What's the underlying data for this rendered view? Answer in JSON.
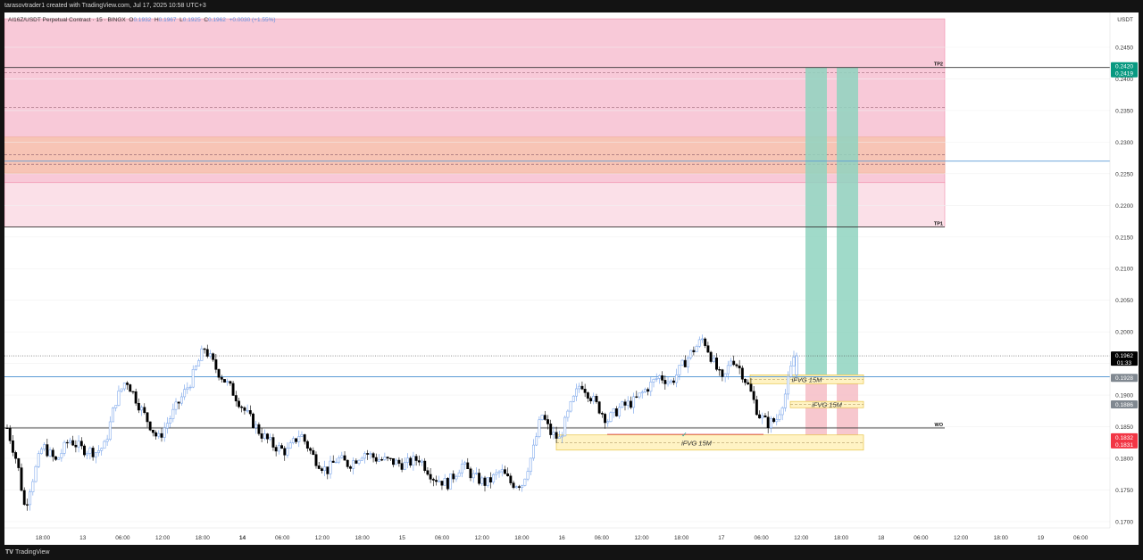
{
  "header": {
    "credit": "tarasovtrader1 created with TradingView.com, Jul 17, 2025 10:58 UTC+3"
  },
  "footer": {
    "brand_mark": "TV",
    "brand": "TradingView"
  },
  "legend": {
    "symbol": "AI16Z/USDT Perpetual Contract · 15 · BINGX",
    "o_label": "O",
    "o": "0.1932",
    "h_label": "H",
    "h": "0.1967",
    "l_label": "L",
    "l": "0.1925",
    "c_label": "C",
    "c": "0.1962",
    "change": "+0.0030 (+1.55%)"
  },
  "currency": "USDT",
  "colors": {
    "candle_up": "#ffffff",
    "candle_up_border": "#6b9be8",
    "candle_down": "#000000",
    "zone_pink": "#f8c9d8",
    "zone_orange": "#f7c4b5",
    "zone_light": "#fbe0e8",
    "fvg": "#fff3c4",
    "fvg_border": "#e8c547",
    "target": "#8fd3c0",
    "stop": "#f6bdc6",
    "blue_line": "#5b9bd5",
    "price_tag": "#000000",
    "price_tag_2": "#808890",
    "tp_tag": "#089981",
    "sl_tag": "#f23645"
  },
  "chart_data": {
    "type": "candlestick",
    "ylim": [
      0.169,
      0.2505
    ],
    "y_ticks": [
      "0.2450",
      "0.2400",
      "0.2350",
      "0.2300",
      "0.2250",
      "0.2200",
      "0.2150",
      "0.2100",
      "0.2050",
      "0.2000",
      "0.1950",
      "0.1900",
      "0.1850",
      "0.1800",
      "0.1750",
      "0.1700"
    ],
    "x_ticks": [
      "18:00",
      "13",
      "06:00",
      "12:00",
      "18:00",
      "14",
      "06:00",
      "12:00",
      "18:00",
      "15",
      "06:00",
      "12:00",
      "18:00",
      "16",
      "06:00",
      "12:00",
      "18:00",
      "17",
      "06:00",
      "12:00",
      "18:00",
      "18",
      "06:00",
      "12:00",
      "18:00",
      "19",
      "06:00"
    ],
    "x_ticks_bold": [
      "14"
    ],
    "bars_visible": 276,
    "zones": [
      {
        "kind": "pink",
        "top": 0.2495,
        "bottom": 0.2236
      },
      {
        "kind": "orange",
        "top": 0.2308,
        "bottom": 0.2251
      },
      {
        "kind": "light",
        "top": 0.2236,
        "bottom": 0.2166
      }
    ],
    "levels": [
      {
        "name": "TP2",
        "price": 0.2418,
        "style": "solid"
      },
      {
        "name": "TP1",
        "price": 0.2166,
        "style": "solid"
      },
      {
        "name": "WO",
        "price": 0.1848,
        "style": "solid"
      },
      {
        "name": "",
        "price": 0.241,
        "style": "dashed"
      },
      {
        "name": "",
        "price": 0.2355,
        "style": "dashed"
      },
      {
        "name": "",
        "price": 0.228,
        "style": "dashed"
      },
      {
        "name": "",
        "price": 0.2265,
        "style": "dashed"
      }
    ],
    "blue_lines": [
      0.227,
      0.1929
    ],
    "fvg_boxes": [
      {
        "label": "iFVG 15M",
        "top": 0.1932,
        "bottom": 0.1918
      },
      {
        "label": "iFVG 15M",
        "top": 0.189,
        "bottom": 0.188
      },
      {
        "label": "iFVG 15M",
        "top": 0.1837,
        "bottom": 0.1813
      }
    ],
    "positions": [
      {
        "entry": 0.1929,
        "target": 0.2418,
        "stop": 0.1832
      },
      {
        "entry": 0.1929,
        "target": 0.2418,
        "stop": 0.1832
      }
    ],
    "price_labels": {
      "tp_top": "0.2420",
      "tp_bottom": "0.2419",
      "last": "0.1962",
      "countdown": "01:33",
      "level_1": "0.1928",
      "level_2": "0.1886",
      "sl_top": "0.1832",
      "sl_bottom": "0.1831"
    },
    "current_price": 0.1962,
    "anchors": [
      [
        0,
        0.1848
      ],
      [
        12,
        0.179
      ],
      [
        20,
        0.172
      ],
      [
        26,
        0.1755
      ],
      [
        40,
        0.182
      ],
      [
        55,
        0.1795
      ],
      [
        70,
        0.183
      ],
      [
        84,
        0.1815
      ],
      [
        100,
        0.181
      ],
      [
        110,
        0.182
      ],
      [
        122,
        0.189
      ],
      [
        134,
        0.1925
      ],
      [
        150,
        0.188
      ],
      [
        170,
        0.183
      ],
      [
        186,
        0.187
      ],
      [
        206,
        0.192
      ],
      [
        222,
        0.1975
      ],
      [
        236,
        0.194
      ],
      [
        252,
        0.191
      ],
      [
        270,
        0.187
      ],
      [
        285,
        0.184
      ],
      [
        300,
        0.182
      ],
      [
        315,
        0.181
      ],
      [
        330,
        0.184
      ],
      [
        346,
        0.18
      ],
      [
        360,
        0.178
      ],
      [
        372,
        0.18
      ],
      [
        385,
        0.179
      ],
      [
        402,
        0.181
      ],
      [
        415,
        0.18
      ],
      [
        432,
        0.1795
      ],
      [
        448,
        0.179
      ],
      [
        464,
        0.18
      ],
      [
        480,
        0.177
      ],
      [
        496,
        0.176
      ],
      [
        512,
        0.179
      ],
      [
        526,
        0.177
      ],
      [
        540,
        0.176
      ],
      [
        556,
        0.178
      ],
      [
        568,
        0.176
      ],
      [
        580,
        0.176
      ],
      [
        592,
        0.181
      ],
      [
        602,
        0.187
      ],
      [
        612,
        0.184
      ],
      [
        622,
        0.183
      ],
      [
        634,
        0.188
      ],
      [
        646,
        0.192
      ],
      [
        656,
        0.19
      ],
      [
        666,
        0.188
      ],
      [
        676,
        0.186
      ],
      [
        690,
        0.188
      ],
      [
        706,
        0.189
      ],
      [
        720,
        0.191
      ],
      [
        734,
        0.193
      ],
      [
        748,
        0.192
      ],
      [
        762,
        0.195
      ],
      [
        772,
        0.197
      ],
      [
        784,
        0.199
      ],
      [
        796,
        0.195
      ],
      [
        806,
        0.192
      ],
      [
        816,
        0.196
      ],
      [
        826,
        0.194
      ],
      [
        836,
        0.191
      ],
      [
        846,
        0.187
      ],
      [
        856,
        0.1855
      ],
      [
        866,
        0.186
      ],
      [
        876,
        0.19
      ],
      [
        886,
        0.196
      ]
    ]
  }
}
